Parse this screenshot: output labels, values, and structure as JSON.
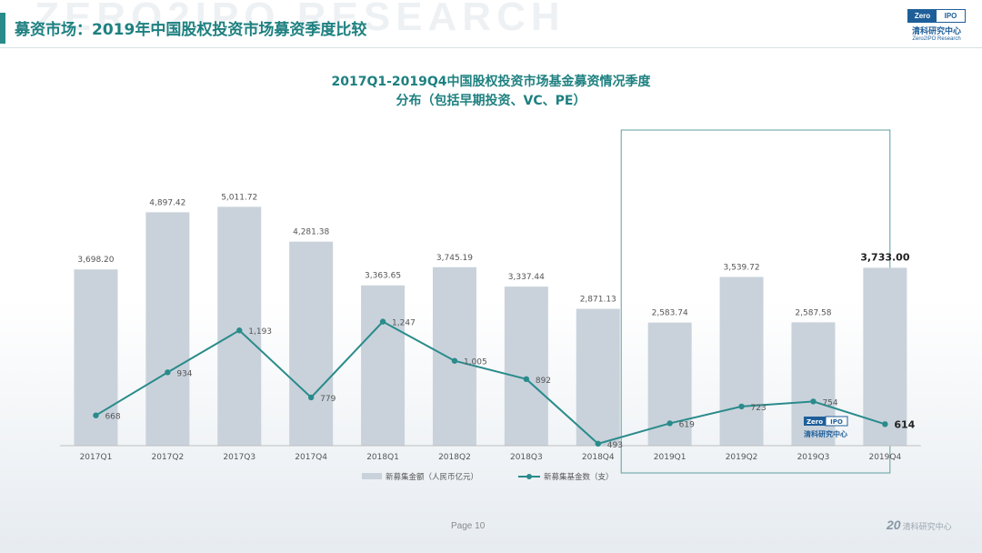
{
  "watermark": "ZERO2IPO RESEARCH",
  "slide_title": "募资市场：2019年中国股权投资市场募资季度比较",
  "logo": {
    "badge_left": "Zero",
    "badge_right": "IPO",
    "cn": "清科研究中心",
    "en": "Zero2IPO Research"
  },
  "chart_watermark": {
    "badge_left": "Zero",
    "badge_right": "IPO",
    "cn": "清科研究中心"
  },
  "page_label": "Page 10",
  "footer_logo": {
    "mark": "20",
    "text": "清科研究中心"
  },
  "colors": {
    "bar": "#c9d2db",
    "line": "#2a8b8b",
    "title": "#1e8080",
    "highlight_box": "#5e9ea0"
  },
  "chart_data": {
    "type": "bar",
    "title_line1": "2017Q1-2019Q4中国股权投资市场基金募资情况季度",
    "title_line2": "分布（包括早期投资、VC、PE）",
    "categories": [
      "2017Q1",
      "2017Q2",
      "2017Q3",
      "2017Q4",
      "2018Q1",
      "2018Q2",
      "2018Q3",
      "2018Q4",
      "2019Q1",
      "2019Q2",
      "2019Q3",
      "2019Q4"
    ],
    "series": [
      {
        "name": "新募集金额（人民币亿元）",
        "type": "bar",
        "values": [
          3698.2,
          4897.42,
          5011.72,
          4281.38,
          3363.65,
          3745.19,
          3337.44,
          2871.13,
          2583.74,
          3539.72,
          2587.58,
          3733.0
        ],
        "labels": [
          "3,698.20",
          "4,897.42",
          "5,011.72",
          "4,281.38",
          "3,363.65",
          "3,745.19",
          "3,337.44",
          "2,871.13",
          "2,583.74",
          "3,539.72",
          "2,587.58",
          "3,733.00"
        ]
      },
      {
        "name": "新募集基金数（支）",
        "type": "line",
        "values": [
          668,
          934,
          1193,
          779,
          1247,
          1005,
          892,
          493,
          619,
          723,
          754,
          614
        ],
        "labels": [
          "668",
          "934",
          "1,193",
          "779",
          "1,247",
          "1,005",
          "892",
          "493",
          "619",
          "723",
          "754",
          "614"
        ]
      }
    ],
    "highlight_categories": [
      "2019Q1",
      "2019Q2",
      "2019Q3",
      "2019Q4"
    ],
    "emphasized_category": "2019Q4",
    "grid": false,
    "legend_position": "bottom"
  }
}
